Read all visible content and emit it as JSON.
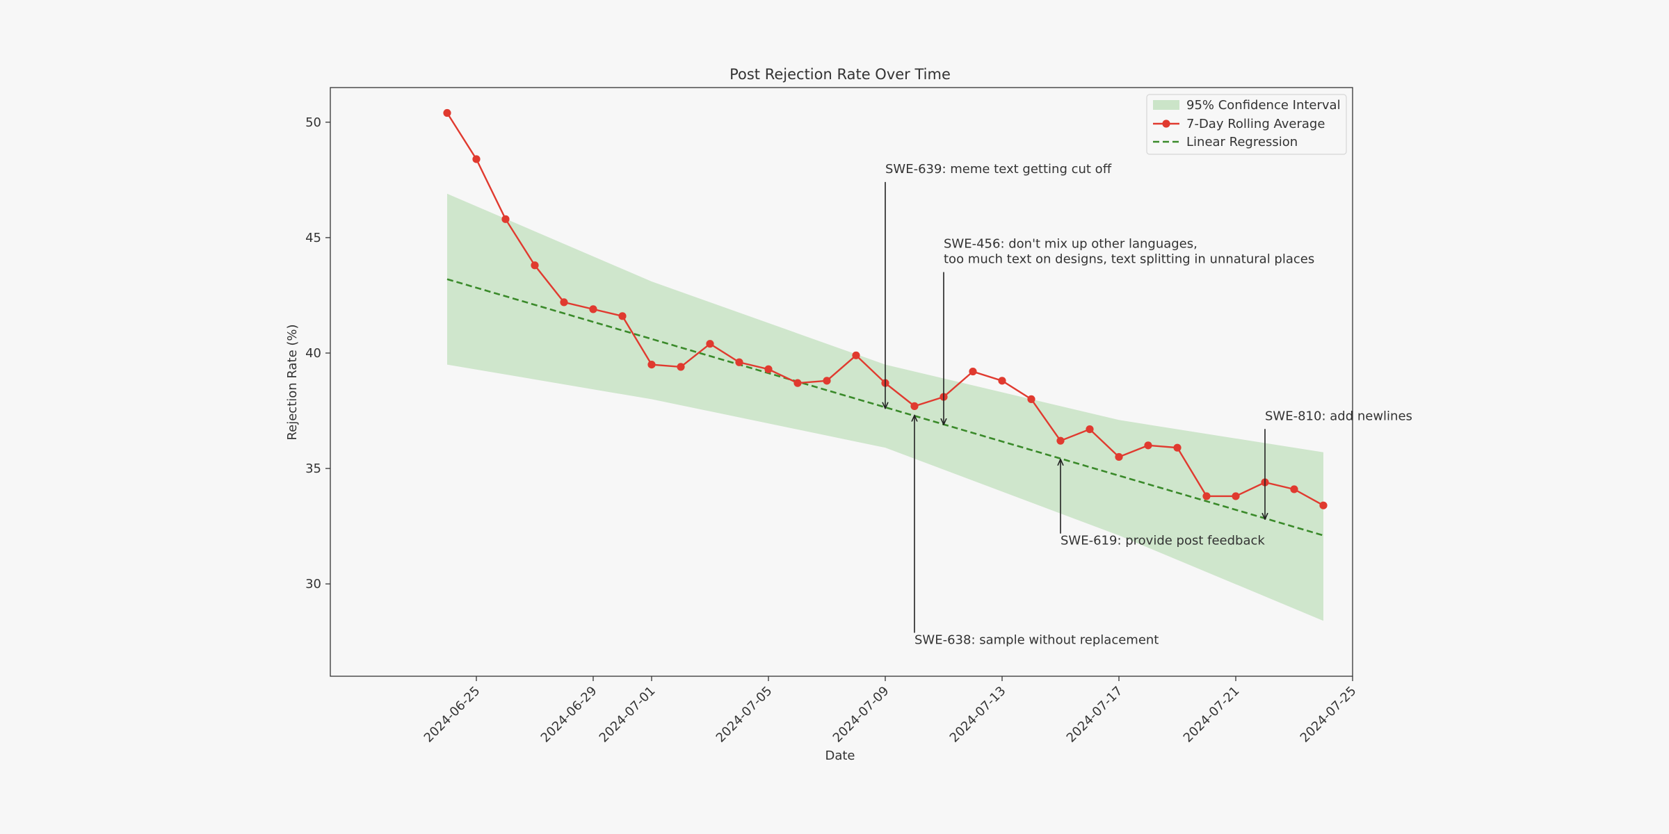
{
  "chart_data": {
    "type": "line",
    "title": "Post Rejection Rate Over Time",
    "xlabel": "Date",
    "ylabel": "Rejection Rate (%)",
    "xlim": [
      "2024-06-20",
      "2024-07-25"
    ],
    "ylim": [
      26,
      51.5
    ],
    "x_ticks": [
      "2024-06-25",
      "2024-06-29",
      "2024-07-01",
      "2024-07-05",
      "2024-07-09",
      "2024-07-13",
      "2024-07-17",
      "2024-07-21",
      "2024-07-25"
    ],
    "y_ticks": [
      30,
      35,
      40,
      45,
      50
    ],
    "grid": false,
    "legend_position": "top-right",
    "colors": {
      "rolling": "#e03a2f",
      "regression": "#3a8a2a",
      "ci_fill": "#a8d5a2",
      "background": "#f7f7f7",
      "axes": "#333333"
    },
    "legend": {
      "ci": "95% Confidence Interval",
      "rolling": "7-Day Rolling Average",
      "regression": "Linear Regression"
    },
    "series": [
      {
        "name": "7-Day Rolling Average",
        "x": [
          "2024-06-24",
          "2024-06-25",
          "2024-06-26",
          "2024-06-27",
          "2024-06-28",
          "2024-06-29",
          "2024-06-30",
          "2024-07-01",
          "2024-07-02",
          "2024-07-03",
          "2024-07-04",
          "2024-07-05",
          "2024-07-06",
          "2024-07-07",
          "2024-07-08",
          "2024-07-09",
          "2024-07-10",
          "2024-07-11",
          "2024-07-12",
          "2024-07-13",
          "2024-07-14",
          "2024-07-15",
          "2024-07-16",
          "2024-07-17",
          "2024-07-18",
          "2024-07-19",
          "2024-07-20",
          "2024-07-21",
          "2024-07-22",
          "2024-07-23",
          "2024-07-24"
        ],
        "y": [
          50.4,
          48.4,
          45.8,
          43.8,
          42.2,
          41.9,
          41.6,
          39.5,
          39.4,
          40.4,
          39.6,
          39.3,
          38.7,
          38.8,
          39.9,
          38.7,
          37.7,
          38.1,
          39.2,
          38.8,
          38.0,
          36.2,
          36.7,
          35.5,
          36.0,
          35.9,
          33.8,
          33.8,
          34.4,
          34.1,
          33.4
        ]
      },
      {
        "name": "Linear Regression",
        "x": [
          "2024-06-24",
          "2024-07-24"
        ],
        "y": [
          43.2,
          32.1
        ]
      }
    ],
    "confidence_interval": {
      "x": [
        "2024-06-24",
        "2024-07-01",
        "2024-07-09",
        "2024-07-17",
        "2024-07-24"
      ],
      "upper": [
        46.9,
        43.1,
        39.5,
        37.1,
        35.7
      ],
      "lower": [
        39.5,
        38.0,
        35.9,
        32.1,
        28.4
      ]
    },
    "annotations": [
      {
        "lines": [
          "SWE-639: meme text getting cut off"
        ],
        "point": [
          "2024-07-09",
          37.6
        ],
        "text_at": [
          "2024-07-09",
          47.8
        ],
        "anchor": "start"
      },
      {
        "lines": [
          "SWE-456: don't mix up other languages,",
          "too much text on designs, text splitting in unnatural places"
        ],
        "point": [
          "2024-07-11",
          36.9
        ],
        "text_at": [
          "2024-07-11",
          43.9
        ],
        "anchor": "start"
      },
      {
        "lines": [
          "SWE-638: sample without replacement"
        ],
        "point": [
          "2024-07-10",
          37.3
        ],
        "text_at": [
          "2024-07-10",
          27.4
        ],
        "anchor": "start"
      },
      {
        "lines": [
          "SWE-619: provide post feedback"
        ],
        "point": [
          "2024-07-15",
          35.4
        ],
        "text_at": [
          "2024-07-15",
          31.7
        ],
        "anchor": "start"
      },
      {
        "lines": [
          "SWE-810: add newlines"
        ],
        "point": [
          "2024-07-22",
          32.8
        ],
        "text_at": [
          "2024-07-22",
          37.1
        ],
        "anchor": "start"
      }
    ]
  }
}
